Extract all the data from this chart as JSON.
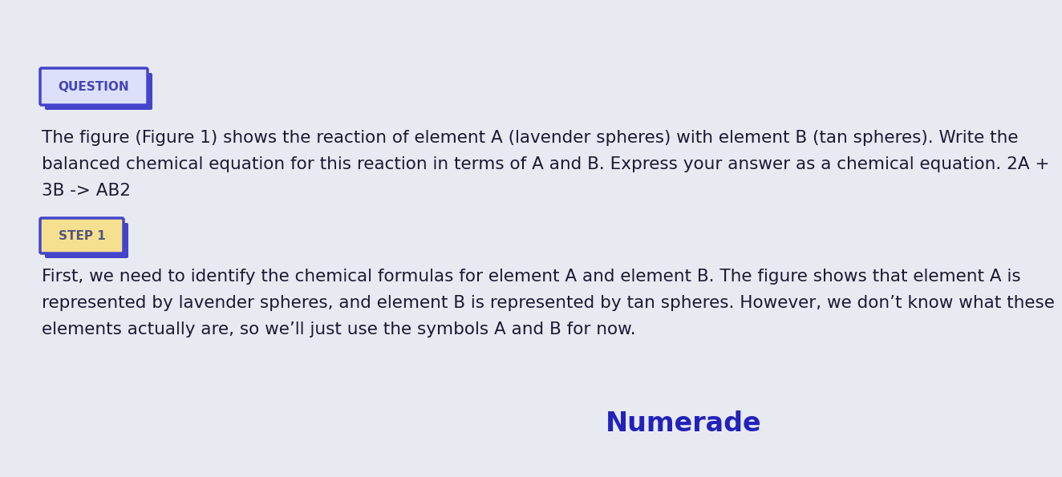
{
  "background_color": "#e8eaf2",
  "question_label": "QUESTION",
  "question_label_color": "#4444bb",
  "question_label_bg": "#dce0fa",
  "question_label_border": "#4444cc",
  "question_text_line1": "The figure (Figure 1) shows the reaction of element A (lavender spheres) with element B (tan spheres). Write the",
  "question_text_line2": "balanced chemical equation for this reaction in terms of A and B. Express your answer as a chemical equation. 2A +",
  "question_text_line3": "3B -> AB2",
  "step_label": "STEP 1",
  "step_label_color": "#555580",
  "step_label_bg": "#f5e090",
  "step_label_border": "#4444cc",
  "step_text_line1": "First, we need to identify the chemical formulas for element A and element B. The figure shows that element A is",
  "step_text_line2": "represented by lavender spheres, and element B is represented by tan spheres. However, we don’t know what these",
  "step_text_line3": "elements actually are, so we’ll just use the symbols A and B for now.",
  "text_color": "#1a1a35",
  "numerade_text": "Numerade",
  "numerade_color": "#2222bb",
  "font_size_body": 15.5,
  "font_size_label": 11,
  "font_size_numerade": 24
}
